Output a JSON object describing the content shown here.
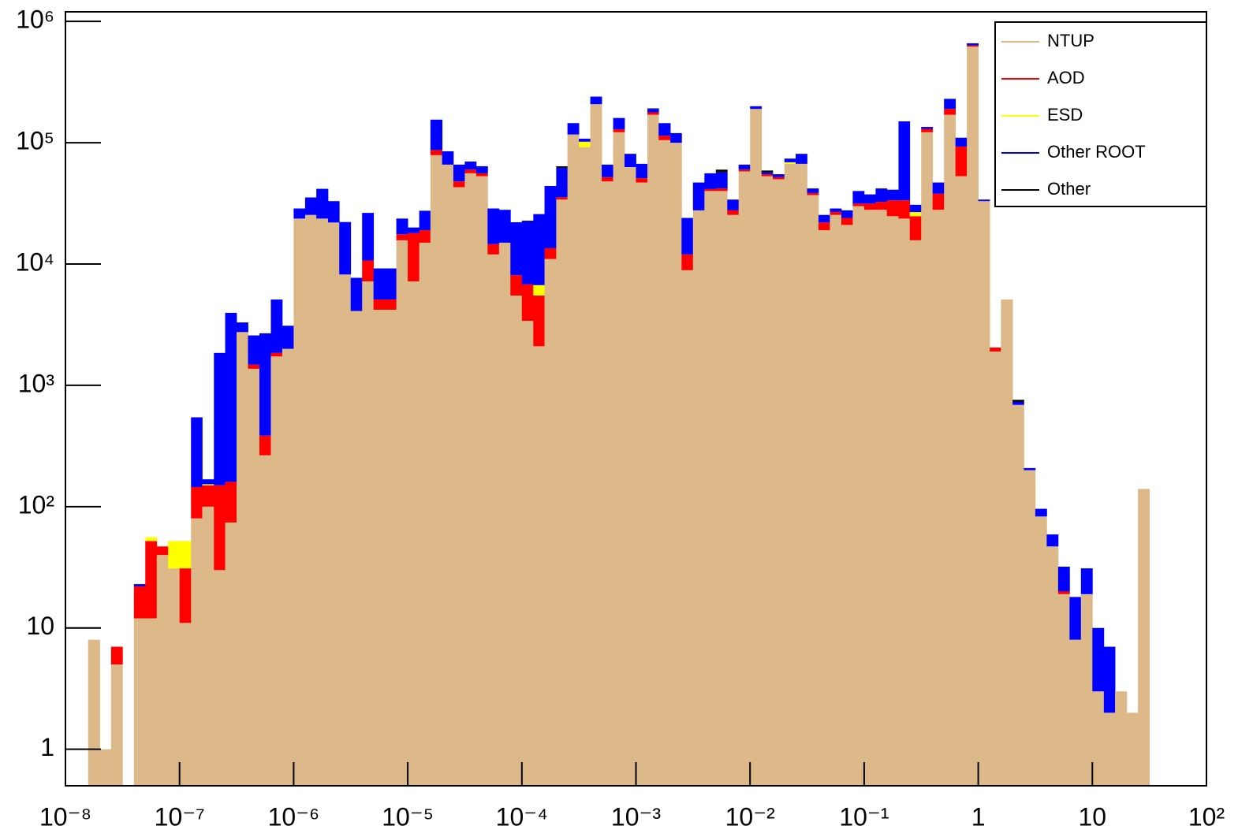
{
  "chart_data": {
    "type": "histogram",
    "log_x": true,
    "log_y": true,
    "legend": "top right",
    "xlim": [
      1e-08,
      100
    ],
    "ylim": [
      0.5,
      1200000
    ],
    "xticks": [
      {
        "value": 1e-08,
        "label": "10⁻⁸"
      },
      {
        "value": 1e-07,
        "label": "10⁻⁷"
      },
      {
        "value": 1e-06,
        "label": "10⁻⁶"
      },
      {
        "value": 1e-05,
        "label": "10⁻⁵"
      },
      {
        "value": 0.0001,
        "label": "10⁻⁴"
      },
      {
        "value": 0.001,
        "label": "10⁻³"
      },
      {
        "value": 0.01,
        "label": "10⁻²"
      },
      {
        "value": 0.1,
        "label": "10⁻¹"
      },
      1,
      10,
      {
        "value": 100,
        "label": "10²"
      }
    ],
    "yticks": [
      1,
      10,
      {
        "value": 100,
        "label": "10²"
      },
      {
        "value": 1000,
        "label": "10³"
      },
      {
        "value": 10000,
        "label": "10⁴"
      },
      {
        "value": 100000,
        "label": "10⁵"
      },
      {
        "value": 1000000,
        "label": "10⁶"
      }
    ],
    "bins": [
      1e-08,
      1.26e-08,
      1.58e-08,
      2e-08,
      2.51e-08,
      3.16e-08,
      3.98e-08,
      5.01e-08,
      6.31e-08,
      7.94e-08,
      1e-07,
      1.26e-07,
      1.58e-07,
      2e-07,
      2.51e-07,
      3.16e-07,
      3.98e-07,
      5.01e-07,
      6.31e-07,
      7.94e-07,
      1e-06,
      1.26e-06,
      1.58e-06,
      2e-06,
      2.51e-06,
      3.16e-06,
      3.98e-06,
      5.01e-06,
      6.31e-06,
      7.94e-06,
      1e-05,
      1.26e-05,
      1.58e-05,
      2e-05,
      2.51e-05,
      3.16e-05,
      3.98e-05,
      5.01e-05,
      6.31e-05,
      7.94e-05,
      0.0001,
      0.000126,
      0.000158,
      0.0002,
      0.000251,
      0.000316,
      0.000398,
      0.000501,
      0.000631,
      0.000794,
      0.001,
      0.00126,
      0.00158,
      0.002,
      0.00251,
      0.00316,
      0.00398,
      0.00501,
      0.00631,
      0.00794,
      0.01,
      0.0126,
      0.0158,
      0.02,
      0.0251,
      0.0316,
      0.0398,
      0.0501,
      0.0631,
      0.0794,
      0.1,
      0.126,
      0.158,
      0.2,
      0.251,
      0.316,
      0.398,
      0.501,
      0.631,
      0.794,
      1,
      1.26,
      1.58,
      2,
      2.51,
      3.16,
      3.98,
      5.01,
      6.31,
      7.94,
      10,
      12.6,
      15.8,
      20,
      25.1,
      31.6,
      39.8,
      50.1,
      63.1,
      79.4,
      100
    ],
    "series": [
      {
        "name": "NTUP",
        "color": "#ddb888",
        "values": [
          0,
          0,
          8,
          1,
          5,
          0,
          12,
          12,
          40,
          31,
          11,
          80,
          100,
          30,
          74,
          2750,
          1370,
          265,
          1730,
          2000,
          23700,
          25400,
          23700,
          22000,
          8200,
          4100,
          7200,
          4200,
          4200,
          15700,
          7200,
          15000,
          79000,
          66000,
          43000,
          56000,
          53000,
          12000,
          15000,
          5500,
          3400,
          2100,
          11000,
          34000,
          117000,
          92000,
          208000,
          48000,
          122000,
          63000,
          47000,
          170000,
          105000,
          100000,
          8900,
          27700,
          40000,
          40000,
          25400,
          58000,
          190000,
          53000,
          50000,
          67000,
          67000,
          37000,
          19000,
          25400,
          21000,
          30000,
          28000,
          28000,
          24800,
          23700,
          15700,
          122000,
          28000,
          170000,
          53000,
          620000,
          33000,
          1900,
          5100,
          690,
          200,
          83,
          47,
          19,
          8,
          19,
          3,
          2,
          3,
          2,
          140,
          0,
          0,
          0,
          0,
          0
        ]
      },
      {
        "name": "AOD",
        "color": "#ff0000",
        "values": [
          0,
          0,
          0,
          0,
          2,
          0,
          10,
          40,
          7,
          0,
          20,
          65,
          50,
          120,
          86,
          0,
          110,
          120,
          120,
          0,
          0,
          0,
          0,
          0,
          0,
          0,
          3500,
          900,
          900,
          1900,
          10800,
          4000,
          8000,
          0,
          5000,
          4000,
          3000,
          2600,
          0,
          2600,
          3400,
          3400,
          2500,
          1500,
          0,
          0,
          0,
          4000,
          7000,
          0,
          4000,
          8000,
          9000,
          0,
          3100,
          0,
          1500,
          2000,
          2300,
          2000,
          0,
          2000,
          2000,
          0,
          0,
          1500,
          3000,
          1500,
          3000,
          1500,
          3500,
          4500,
          8700,
          9800,
          9100,
          8000,
          10000,
          20000,
          40000,
          15000,
          0,
          150,
          0,
          0,
          0,
          0,
          0,
          1,
          0,
          0,
          0,
          0,
          0,
          0,
          0,
          0,
          0,
          0,
          0,
          0
        ]
      },
      {
        "name": "ESD",
        "color": "#ffff00",
        "values": [
          0,
          0,
          0,
          0,
          0,
          0,
          0,
          4,
          0,
          21,
          21,
          0,
          3,
          0,
          0,
          0,
          0,
          0,
          0,
          0,
          0,
          0,
          0,
          0,
          0,
          0,
          0,
          0,
          0,
          0,
          0,
          0,
          0,
          0,
          0,
          0,
          0,
          0,
          0,
          0,
          0,
          1200,
          0,
          0,
          0,
          10000,
          0,
          0,
          0,
          0,
          0,
          0,
          0,
          0,
          0,
          0,
          0,
          0,
          0,
          0,
          0,
          0,
          0,
          2000,
          0,
          0,
          0,
          0,
          0,
          0,
          0,
          0,
          0,
          0,
          2000,
          0,
          0,
          0,
          0,
          0,
          0,
          0,
          0,
          0,
          0,
          0,
          0,
          0,
          0,
          0,
          0,
          0,
          0,
          0,
          0,
          0,
          0,
          0,
          0,
          0
        ]
      },
      {
        "name": "Other ROOT",
        "color": "#0000ff",
        "values": [
          0,
          0,
          0,
          0,
          0,
          0,
          1,
          0,
          0,
          0,
          0,
          400,
          15,
          1700,
          3800,
          550,
          1100,
          2300,
          3250,
          1100,
          5000,
          10000,
          18000,
          11000,
          14000,
          3600,
          15700,
          4100,
          4100,
          6100,
          2000,
          8500,
          68000,
          19000,
          18000,
          10000,
          8000,
          14100,
          13000,
          14000,
          15700,
          19100,
          30500,
          26500,
          28000,
          6000,
          32000,
          14000,
          31000,
          18000,
          16000,
          12000,
          31000,
          20000,
          12000,
          19300,
          14500,
          15000,
          6300,
          6000,
          10000,
          2000,
          3000,
          5000,
          14000,
          3500,
          3400,
          1800,
          3700,
          8500,
          6000,
          9500,
          7500,
          116500,
          4000,
          5000,
          9000,
          40000,
          17000,
          25000,
          1000,
          0,
          0,
          40,
          8,
          13,
          12,
          12,
          10,
          12,
          7,
          5,
          0,
          0,
          0,
          0,
          0,
          0,
          0,
          0
        ]
      },
      {
        "name": "Other",
        "color": "#000000",
        "values": [
          0,
          0,
          0,
          0,
          0,
          0,
          0,
          0,
          0,
          0,
          0,
          0,
          0,
          0,
          0,
          0,
          0,
          0,
          0,
          0,
          0,
          0,
          0,
          0,
          0,
          0,
          0,
          0,
          0,
          0,
          0,
          0,
          0,
          0,
          0,
          0,
          0,
          0,
          0,
          0,
          300,
          0,
          0,
          2000,
          0,
          0,
          0,
          0,
          0,
          0,
          0,
          2000,
          0,
          0,
          0,
          0,
          0,
          3000,
          0,
          0,
          0,
          2000,
          0,
          0,
          0,
          0,
          0,
          0,
          0,
          0,
          0,
          0,
          0,
          0,
          0,
          0,
          0,
          0,
          0,
          0,
          0,
          0,
          0,
          30,
          0,
          0,
          0,
          0,
          0,
          0,
          0,
          0,
          0,
          0,
          0,
          0,
          0,
          0,
          0,
          0
        ]
      }
    ]
  }
}
